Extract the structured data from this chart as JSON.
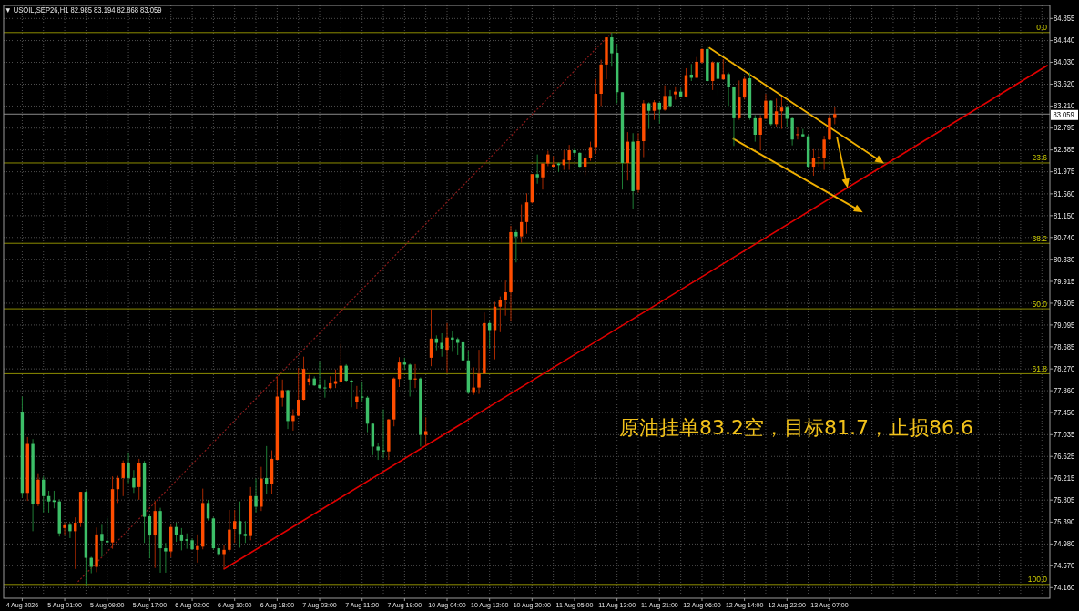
{
  "chart_data": {
    "type": "candlestick",
    "title": "▼ USOIL,SEP26,H1  82.985 83.194 82.868 83.059",
    "annotations": [
      "原油挂单83.2空，目标81.7，止损86.6",
      {
        "text": "0.0",
        "y": 84.59
      },
      {
        "text": "23.6",
        "y": 82.14
      },
      {
        "text": "38.2",
        "y": 80.63
      },
      {
        "text": "50.0",
        "y": 79.4
      },
      {
        "text": "61.8",
        "y": 78.18
      },
      {
        "text": "100.0",
        "y": 74.22
      }
    ],
    "categories": [
      "4 Aug 2026",
      null,
      null,
      null,
      null,
      null,
      null,
      null,
      "5 Aug 01:00",
      null,
      null,
      null,
      null,
      null,
      null,
      null,
      "5 Aug 09:00",
      null,
      null,
      null,
      null,
      null,
      null,
      null,
      "5 Aug 17:00",
      null,
      null,
      null,
      null,
      null,
      null,
      null,
      "6 Aug 02:00",
      null,
      null,
      null,
      null,
      null,
      null,
      null,
      "6 Aug 10:00",
      null,
      null,
      null,
      null,
      null,
      null,
      null,
      "6 Aug 18:00",
      null,
      null,
      null,
      null,
      null,
      null,
      null,
      "7 Aug 03:00",
      null,
      null,
      null,
      null,
      null,
      null,
      null,
      "7 Aug 11:00",
      null,
      null,
      null,
      null,
      null,
      null,
      null,
      "7 Aug 19:00",
      null,
      null,
      null,
      null,
      null,
      null,
      null,
      "10 Aug 04:00",
      null,
      null,
      null,
      null,
      null,
      null,
      null,
      "10 Aug 12:00",
      null,
      null,
      null,
      null,
      null,
      null,
      null,
      "10 Aug 20:00",
      null,
      null,
      null,
      null,
      null,
      null,
      null,
      "11 Aug 05:00",
      null,
      null,
      null,
      null,
      null,
      null,
      null,
      "11 Aug 13:00",
      null,
      null,
      null,
      null,
      null,
      null,
      null,
      "11 Aug 21:00",
      null,
      null,
      null,
      null,
      null,
      null,
      null,
      "12 Aug 06:00",
      null,
      null,
      null,
      null,
      null,
      null,
      null,
      "12 Aug 14:00",
      null,
      null,
      null,
      null,
      null,
      null,
      null,
      "12 Aug 22:00",
      null,
      null,
      null,
      null,
      null,
      null,
      null,
      "13 Aug 07:00",
      null,
      null,
      null,
      null,
      null,
      null,
      null,
      null,
      null,
      null,
      null,
      null,
      null,
      null,
      null,
      null,
      null,
      null,
      null,
      null,
      null,
      null,
      null,
      null,
      null,
      null,
      null,
      null,
      null,
      null,
      null,
      null,
      null,
      null,
      null,
      null,
      null,
      null,
      null,
      null,
      null
    ],
    "ohlc": [
      [
        77.45,
        77.75,
        75.85,
        75.94
      ],
      [
        75.94,
        76.99,
        75.79,
        76.86
      ],
      [
        76.86,
        76.95,
        75.22,
        75.73
      ],
      [
        75.73,
        76.31,
        75.69,
        76.19
      ],
      [
        76.19,
        76.25,
        75.57,
        75.88
      ],
      [
        75.88,
        75.98,
        75.57,
        75.78
      ],
      [
        75.8,
        75.98,
        75.65,
        75.77
      ],
      [
        75.78,
        75.82,
        75.12,
        75.18
      ],
      [
        75.28,
        75.38,
        75.14,
        75.33
      ],
      [
        75.34,
        75.38,
        75.09,
        75.22
      ],
      [
        75.22,
        75.48,
        74.51,
        75.38
      ],
      [
        75.38,
        75.96,
        75.3,
        75.96
      ],
      [
        75.96,
        75.99,
        74.21,
        74.72
      ],
      [
        74.72,
        74.74,
        74.43,
        74.55
      ],
      [
        74.55,
        75.29,
        74.45,
        75.16
      ],
      [
        75.17,
        75.34,
        74.74,
        75.04
      ],
      [
        75.04,
        75.47,
        75.0,
        75.01
      ],
      [
        75.01,
        76.25,
        74.89,
        76.01
      ],
      [
        76.01,
        76.26,
        75.75,
        76.22
      ],
      [
        76.22,
        76.55,
        75.88,
        76.5
      ],
      [
        76.5,
        76.7,
        76.12,
        76.22
      ],
      [
        76.22,
        76.37,
        75.94,
        76.04
      ],
      [
        76.05,
        76.58,
        75.81,
        76.5
      ],
      [
        76.5,
        76.54,
        75.0,
        75.49
      ],
      [
        75.5,
        75.54,
        74.71,
        75.14
      ],
      [
        75.14,
        75.79,
        74.53,
        75.6
      ],
      [
        75.6,
        75.66,
        74.44,
        74.9
      ],
      [
        74.9,
        75.0,
        74.44,
        74.84
      ],
      [
        74.84,
        75.34,
        74.73,
        75.3
      ],
      [
        75.3,
        75.38,
        75.02,
        75.15
      ],
      [
        75.16,
        75.28,
        74.86,
        75.04
      ],
      [
        75.07,
        75.18,
        74.89,
        75.04
      ],
      [
        75.05,
        75.08,
        74.87,
        74.88
      ],
      [
        74.87,
        75.16,
        74.63,
        74.94
      ],
      [
        74.93,
        76.02,
        74.88,
        75.75
      ],
      [
        75.75,
        75.81,
        75.42,
        75.46
      ],
      [
        75.46,
        75.48,
        74.87,
        74.9
      ],
      [
        74.9,
        74.95,
        74.75,
        74.79
      ],
      [
        74.79,
        74.97,
        74.51,
        74.87
      ],
      [
        74.87,
        75.62,
        74.84,
        75.25
      ],
      [
        75.26,
        75.62,
        75.0,
        75.41
      ],
      [
        75.41,
        75.78,
        74.91,
        75.17
      ],
      [
        75.17,
        75.41,
        75.0,
        75.13
      ],
      [
        75.13,
        76.05,
        75.05,
        75.88
      ],
      [
        75.88,
        76.21,
        75.57,
        75.68
      ],
      [
        75.68,
        76.43,
        75.6,
        76.21
      ],
      [
        76.22,
        76.82,
        75.91,
        76.11
      ],
      [
        76.11,
        76.74,
        75.92,
        76.58
      ],
      [
        76.56,
        78.13,
        76.55,
        77.75
      ],
      [
        77.73,
        78.07,
        77.56,
        77.87
      ],
      [
        77.87,
        77.88,
        77.14,
        77.29
      ],
      [
        77.29,
        77.51,
        77.11,
        77.39
      ],
      [
        77.39,
        78.29,
        77.38,
        77.69
      ],
      [
        77.69,
        78.5,
        77.68,
        78.27
      ],
      [
        78.03,
        78.16,
        77.96,
        78.09
      ],
      [
        78.09,
        78.13,
        77.95,
        77.96
      ],
      [
        77.97,
        78.42,
        77.89,
        77.91
      ],
      [
        77.92,
        78.07,
        77.73,
        77.91
      ],
      [
        77.91,
        78.13,
        77.89,
        78.0
      ],
      [
        77.99,
        78.26,
        77.91,
        78.04
      ],
      [
        78.03,
        78.74,
        78.03,
        78.33
      ],
      [
        78.33,
        78.36,
        78.02,
        78.05
      ],
      [
        78.05,
        78.07,
        77.55,
        78.02
      ],
      [
        77.65,
        77.95,
        77.52,
        77.75
      ],
      [
        77.75,
        78.02,
        77.65,
        77.73
      ],
      [
        77.73,
        77.76,
        77.08,
        77.24
      ],
      [
        77.24,
        77.26,
        76.65,
        76.81
      ],
      [
        76.81,
        76.88,
        76.56,
        76.74
      ],
      [
        76.74,
        77.51,
        76.59,
        76.72
      ],
      [
        76.72,
        77.33,
        76.56,
        77.32
      ],
      [
        77.32,
        78.11,
        77.19,
        78.09
      ],
      [
        78.08,
        78.49,
        77.93,
        78.39
      ],
      [
        78.39,
        78.48,
        78.25,
        78.35
      ],
      [
        78.35,
        78.37,
        77.75,
        78.07
      ],
      [
        78.07,
        78.36,
        77.91,
        78.09
      ],
      [
        78.09,
        78.11,
        76.81,
        77.03
      ],
      [
        77.03,
        77.36,
        76.82,
        77.1
      ],
      [
        78.48,
        79.39,
        78.32,
        78.84
      ],
      [
        78.84,
        78.9,
        78.62,
        78.76
      ],
      [
        78.76,
        78.94,
        78.5,
        78.65
      ],
      [
        78.63,
        79.13,
        78.19,
        78.86
      ],
      [
        78.86,
        78.99,
        78.59,
        78.82
      ],
      [
        78.83,
        78.86,
        78.53,
        78.76
      ],
      [
        78.77,
        78.85,
        78.32,
        78.43
      ],
      [
        78.43,
        78.6,
        77.8,
        77.82
      ],
      [
        77.82,
        78.3,
        77.78,
        77.92
      ],
      [
        77.92,
        78.63,
        77.8,
        78.18
      ],
      [
        78.18,
        79.33,
        78.18,
        79.13
      ],
      [
        79.13,
        79.17,
        78.65,
        79.0
      ],
      [
        79.0,
        79.53,
        78.45,
        79.44
      ],
      [
        79.44,
        79.63,
        78.96,
        79.56
      ],
      [
        79.56,
        79.93,
        79.27,
        79.71
      ],
      [
        79.71,
        80.96,
        79.16,
        80.84
      ],
      [
        80.84,
        80.88,
        80.27,
        80.76
      ],
      [
        80.76,
        81.36,
        80.64,
        81.03
      ],
      [
        81.03,
        81.57,
        80.81,
        81.4
      ],
      [
        81.4,
        81.93,
        81.38,
        81.93
      ],
      [
        81.93,
        82.3,
        81.75,
        81.87
      ],
      [
        81.87,
        82.13,
        81.64,
        82.13
      ],
      [
        82.13,
        82.37,
        82.08,
        82.3
      ],
      [
        82.07,
        82.27,
        82.07,
        82.11
      ],
      [
        82.13,
        82.15,
        81.97,
        82.1
      ],
      [
        82.1,
        82.38,
        82.01,
        82.2
      ],
      [
        82.19,
        82.48,
        82.01,
        82.38
      ],
      [
        82.38,
        82.41,
        82.27,
        82.33
      ],
      [
        82.33,
        82.34,
        82.06,
        82.07
      ],
      [
        82.07,
        82.31,
        81.91,
        82.23
      ],
      [
        82.23,
        82.54,
        82.18,
        82.44
      ],
      [
        82.44,
        83.72,
        82.31,
        83.44
      ],
      [
        83.44,
        84.08,
        83.21,
        83.99
      ],
      [
        83.99,
        84.5,
        83.71,
        84.5
      ],
      [
        84.5,
        84.59,
        83.95,
        84.2
      ],
      [
        84.21,
        84.38,
        83.26,
        83.47
      ],
      [
        83.47,
        83.47,
        81.64,
        82.14
      ],
      [
        82.14,
        82.72,
        81.81,
        82.54
      ],
      [
        82.54,
        82.7,
        81.27,
        81.61
      ],
      [
        81.63,
        82.7,
        81.58,
        82.55
      ],
      [
        82.55,
        83.32,
        82.25,
        83.26
      ],
      [
        83.26,
        83.28,
        82.78,
        83.12
      ],
      [
        83.12,
        83.32,
        82.95,
        83.28
      ],
      [
        83.27,
        83.29,
        82.88,
        83.14
      ],
      [
        83.14,
        83.6,
        83.12,
        83.4
      ],
      [
        83.4,
        83.51,
        83.18,
        83.21
      ],
      [
        83.43,
        83.58,
        83.33,
        83.48
      ],
      [
        83.48,
        83.54,
        83.39,
        83.39
      ],
      [
        83.39,
        83.92,
        83.37,
        83.79
      ],
      [
        83.8,
        84.0,
        83.68,
        83.74
      ],
      [
        83.74,
        84.13,
        83.74,
        84.04
      ],
      [
        84.03,
        84.29,
        84.01,
        84.28
      ],
      [
        84.28,
        84.32,
        83.67,
        83.68
      ],
      [
        83.68,
        84.05,
        83.51,
        84.03
      ],
      [
        84.03,
        84.05,
        83.41,
        83.72
      ],
      [
        83.71,
        84.09,
        83.71,
        83.81
      ],
      [
        83.81,
        83.84,
        83.21,
        83.56
      ],
      [
        83.56,
        83.58,
        82.46,
        82.98
      ],
      [
        82.98,
        83.69,
        82.95,
        83.37
      ],
      [
        83.37,
        83.75,
        83.33,
        83.72
      ],
      [
        83.73,
        83.84,
        82.95,
        82.98
      ],
      [
        82.98,
        83.04,
        82.54,
        82.67
      ],
      [
        82.67,
        83.04,
        82.38,
        82.98
      ],
      [
        82.97,
        83.44,
        82.97,
        83.31
      ],
      [
        83.31,
        83.32,
        82.84,
        82.87
      ],
      [
        82.87,
        83.35,
        82.81,
        83.11
      ],
      [
        83.11,
        83.38,
        82.78,
        83.18
      ],
      [
        83.18,
        83.22,
        82.81,
        82.97
      ],
      [
        82.98,
        83.01,
        82.47,
        82.58
      ],
      [
        82.67,
        82.81,
        82.58,
        82.68
      ],
      [
        82.68,
        82.78,
        82.63,
        82.64
      ],
      [
        82.64,
        82.67,
        82.04,
        82.07
      ],
      [
        82.07,
        82.4,
        81.9,
        82.24
      ],
      [
        82.23,
        82.41,
        82.07,
        82.25
      ],
      [
        82.24,
        82.65,
        82.01,
        82.58
      ],
      [
        82.58,
        83.04,
        82.57,
        82.98
      ],
      [
        82.985,
        83.194,
        82.868,
        83.059
      ],
      null,
      null,
      null,
      null,
      null,
      null,
      null,
      null,
      null,
      null,
      null,
      null,
      null,
      null,
      null,
      null,
      null,
      null,
      null,
      null,
      null,
      null,
      null,
      null,
      null,
      null,
      null,
      null,
      null,
      null,
      null,
      null,
      null,
      null,
      null,
      null,
      null,
      null,
      null,
      null
    ],
    "series": [
      {
        "type": "line",
        "color": "#e00000",
        "values": [
          null,
          null,
          null,
          null,
          null,
          null,
          null,
          null,
          null,
          null,
          null,
          null,
          null,
          null,
          null,
          null,
          null,
          null,
          null,
          null,
          null,
          null,
          null,
          null,
          null,
          null,
          null,
          null,
          null,
          null,
          null,
          null,
          null,
          null,
          null,
          null,
          null,
          null,
          74.51,
          null,
          null,
          null,
          null,
          null,
          null,
          null,
          null,
          null,
          null,
          null,
          null,
          null,
          null,
          null,
          null,
          null,
          null,
          null,
          null,
          null,
          null,
          null,
          null,
          null,
          null,
          null,
          null,
          null,
          null,
          null,
          null,
          null,
          null,
          null,
          null,
          null,
          null,
          null,
          null,
          null,
          null,
          null,
          null,
          null,
          null,
          null,
          null,
          null,
          null,
          null,
          null,
          null,
          null,
          null,
          null,
          null,
          null,
          null,
          null,
          null,
          null,
          null,
          null,
          null,
          null,
          null,
          null,
          null,
          null,
          null,
          null,
          null,
          null,
          null,
          null,
          null,
          null,
          null,
          null,
          null,
          null,
          null,
          null,
          null,
          null,
          null,
          null,
          null,
          null,
          null,
          null,
          null,
          null,
          null,
          null,
          null,
          null,
          null,
          null,
          null,
          null,
          null,
          null,
          null,
          null,
          null,
          null,
          null,
          null,
          null,
          null,
          null,
          null,
          null,
          null,
          null,
          null,
          null,
          null,
          null,
          null,
          null,
          null,
          null,
          null,
          null,
          null,
          null,
          null,
          null,
          null,
          null,
          null,
          null,
          null,
          null,
          null,
          null,
          null,
          null,
          null,
          null,
          null,
          null,
          null,
          null,
          null,
          null,
          null,
          null,
          null,
          null,
          null,
          83.97
        ]
      },
      {
        "type": "line",
        "color": "#8b1a1a",
        "line_style": "dotted",
        "values": [
          null,
          null,
          null,
          null,
          null,
          null,
          null,
          null,
          null,
          null,
          74.22,
          null,
          null,
          null,
          null,
          null,
          null,
          null,
          null,
          null,
          null,
          null,
          null,
          null,
          null,
          null,
          null,
          null,
          null,
          null,
          null,
          null,
          null,
          null,
          null,
          null,
          null,
          null,
          null,
          null,
          null,
          null,
          null,
          null,
          null,
          null,
          null,
          null,
          null,
          null,
          null,
          null,
          null,
          null,
          null,
          null,
          null,
          null,
          null,
          null,
          null,
          null,
          null,
          null,
          null,
          null,
          null,
          null,
          null,
          null,
          null,
          null,
          null,
          null,
          null,
          null,
          null,
          null,
          null,
          null,
          null,
          null,
          null,
          null,
          null,
          null,
          null,
          null,
          null,
          null,
          null,
          null,
          null,
          null,
          null,
          null,
          null,
          null,
          null,
          null,
          null,
          null,
          null,
          null,
          null,
          null,
          null,
          null,
          null,
          null,
          null,
          84.59,
          null,
          null,
          null,
          null,
          null,
          null,
          null,
          null,
          null,
          null,
          null,
          null,
          null,
          null,
          null,
          null,
          null,
          null,
          null,
          null,
          null,
          null,
          null,
          null,
          null,
          null,
          null,
          null,
          null,
          null,
          null,
          null,
          null,
          null,
          null,
          null,
          null,
          null,
          null,
          null,
          null,
          null,
          null,
          null,
          null,
          null,
          null,
          null,
          null,
          null,
          null,
          null,
          null,
          null,
          null,
          null,
          null,
          null,
          null,
          null,
          null,
          null,
          null,
          null,
          null,
          null,
          null,
          null,
          null,
          null,
          null,
          null,
          null,
          null,
          null,
          null,
          null,
          null,
          null,
          null,
          null,
          null
        ]
      }
    ],
    "ref_lines": [
      {
        "axis": "y",
        "value": 84.59,
        "color": "#8c8c00"
      },
      {
        "axis": "y",
        "value": 82.14,
        "color": "#8c8c00"
      },
      {
        "axis": "y",
        "value": 80.63,
        "color": "#8c8c00"
      },
      {
        "axis": "y",
        "value": 79.4,
        "color": "#8c8c00"
      },
      {
        "axis": "y",
        "value": 78.18,
        "color": "#8c8c00"
      },
      {
        "axis": "y",
        "value": 74.22,
        "color": "#8c8c00"
      },
      {
        "axis": "y",
        "value": 83.059,
        "label": "83.059",
        "color": "#8a8a8a"
      }
    ],
    "ylim": [
      73.96,
      85.1
    ],
    "yticks": [
      {
        "value": 74.16,
        "label": "74.160"
      },
      {
        "value": 74.57,
        "label": "74.570"
      },
      {
        "value": 74.98,
        "label": "74.980"
      },
      {
        "value": 75.39,
        "label": "75.390"
      },
      75.805,
      76.215,
      76.625,
      77.035,
      {
        "value": 77.45,
        "label": "77.450"
      },
      {
        "value": 77.86,
        "label": "77.860"
      },
      {
        "value": 78.27,
        "label": "78.270"
      },
      78.685,
      79.095,
      79.505,
      79.915,
      {
        "value": 80.33,
        "label": "80.330"
      },
      {
        "value": 80.74,
        "label": "80.740"
      },
      {
        "value": 81.15,
        "label": "81.150"
      },
      {
        "value": 81.56,
        "label": "81.560"
      },
      81.975,
      82.385,
      82.795,
      {
        "value": 83.21,
        "label": "83.210"
      },
      {
        "value": 83.62,
        "label": "83.620"
      },
      {
        "value": 84.03,
        "label": "84.030"
      },
      {
        "value": 84.44,
        "label": "84.440"
      },
      84.855
    ],
    "grid": true
  }
}
